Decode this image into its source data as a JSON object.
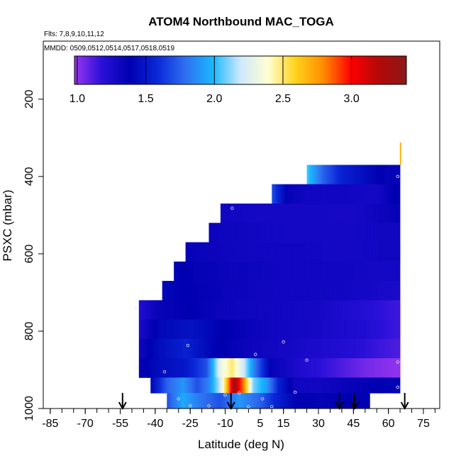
{
  "chart_data": {
    "type": "heatmap",
    "title": "ATOM4 Northbound MAC_TOGA",
    "flights_label": "Flts: 7,8,9,10,11,12",
    "dates_label": "MMDD: 0509,0512,0514,0517,0518,0519",
    "xlabel": "Latitude (deg N)",
    "ylabel": "PSXC (mbar)",
    "xlim": [
      -88,
      82
    ],
    "ylim": [
      1000,
      50
    ],
    "y_reversed": true,
    "x_ticks": [
      -85,
      -70,
      -55,
      -40,
      -25,
      -10,
      5,
      15,
      30,
      45,
      60,
      75
    ],
    "y_ticks": [
      200,
      400,
      600,
      800,
      1000
    ],
    "colorbar": {
      "range": [
        0.98,
        3.4
      ],
      "ticks": [
        1.0,
        1.5,
        2.0,
        2.5,
        3.0
      ],
      "tick_labels": [
        "1.0",
        "1.5",
        "2.0",
        "2.5",
        "3.0"
      ],
      "colors": [
        "#9a36f0",
        "#2810d8",
        "#0000b0",
        "#0a28d8",
        "#2f6ef0",
        "#1ab8ff",
        "#cfe8ff",
        "#ffffd0",
        "#ffd21a",
        "#ff8c00",
        "#ff0000",
        "#b40808",
        "#8c1818"
      ]
    },
    "bin_edges_y": [
      370,
      420,
      470,
      520,
      570,
      620,
      670,
      720,
      770,
      820,
      870,
      920,
      960,
      1000
    ],
    "rows": [
      {
        "y0": 370,
        "y1": 420,
        "x0": 25,
        "x1": 65,
        "cells": [
          [
            25,
            2.05
          ],
          [
            32,
            1.75
          ],
          [
            40,
            1.55
          ],
          [
            50,
            1.45
          ],
          [
            60,
            1.35
          ]
        ]
      },
      {
        "y0": 420,
        "y1": 470,
        "x0": 10,
        "x1": 65,
        "cells": [
          [
            10,
            1.7
          ],
          [
            17,
            1.35
          ],
          [
            25,
            1.3
          ],
          [
            40,
            1.3
          ],
          [
            55,
            1.28
          ],
          [
            64,
            1.4
          ]
        ]
      },
      {
        "y0": 470,
        "y1": 520,
        "x0": -12,
        "x1": 65,
        "cells": [
          [
            -12,
            1.3
          ],
          [
            5,
            1.28
          ],
          [
            25,
            1.28
          ],
          [
            45,
            1.27
          ],
          [
            64,
            1.35
          ]
        ]
      },
      {
        "y0": 520,
        "y1": 570,
        "x0": -17,
        "x1": 65,
        "cells": [
          [
            -17,
            1.32
          ],
          [
            0,
            1.3
          ],
          [
            20,
            1.28
          ],
          [
            40,
            1.28
          ],
          [
            60,
            1.3
          ]
        ]
      },
      {
        "y0": 570,
        "y1": 620,
        "x0": -27,
        "x1": 65,
        "cells": [
          [
            -27,
            1.35
          ],
          [
            -15,
            1.32
          ],
          [
            0,
            1.3
          ],
          [
            20,
            1.3
          ],
          [
            40,
            1.28
          ],
          [
            60,
            1.3
          ]
        ]
      },
      {
        "y0": 620,
        "y1": 670,
        "x0": -32,
        "x1": 65,
        "cells": [
          [
            -32,
            1.4
          ],
          [
            -20,
            1.35
          ],
          [
            -5,
            1.32
          ],
          [
            15,
            1.3
          ],
          [
            35,
            1.3
          ],
          [
            55,
            1.28
          ]
        ]
      },
      {
        "y0": 670,
        "y1": 720,
        "x0": -37,
        "x1": 65,
        "cells": [
          [
            -37,
            1.42
          ],
          [
            -25,
            1.38
          ],
          [
            -10,
            1.33
          ],
          [
            10,
            1.3
          ],
          [
            30,
            1.3
          ],
          [
            50,
            1.28
          ],
          [
            63,
            1.25
          ]
        ]
      },
      {
        "y0": 720,
        "y1": 770,
        "x0": -47,
        "x1": 65,
        "cells": [
          [
            -47,
            1.22
          ],
          [
            -38,
            1.35
          ],
          [
            -25,
            1.38
          ],
          [
            -10,
            1.32
          ],
          [
            10,
            1.3
          ],
          [
            30,
            1.28
          ],
          [
            50,
            1.2
          ],
          [
            63,
            1.15
          ]
        ]
      },
      {
        "y0": 770,
        "y1": 820,
        "x0": -47,
        "x1": 65,
        "cells": [
          [
            -47,
            1.25
          ],
          [
            -38,
            1.42
          ],
          [
            -25,
            1.48
          ],
          [
            -10,
            1.38
          ],
          [
            10,
            1.3
          ],
          [
            30,
            1.27
          ],
          [
            50,
            1.22
          ],
          [
            63,
            1.15
          ]
        ]
      },
      {
        "y0": 820,
        "y1": 870,
        "x0": -47,
        "x1": 65,
        "cells": [
          [
            -47,
            1.3
          ],
          [
            -38,
            1.45
          ],
          [
            -27,
            1.55
          ],
          [
            -15,
            1.4
          ],
          [
            0,
            1.32
          ],
          [
            20,
            1.27
          ],
          [
            45,
            1.2
          ],
          [
            63,
            1.12
          ]
        ]
      },
      {
        "y0": 870,
        "y1": 920,
        "x0": -47,
        "x1": 65,
        "cells": [
          [
            -47,
            1.35
          ],
          [
            -38,
            1.45
          ],
          [
            -27,
            1.5
          ],
          [
            -18,
            1.7
          ],
          [
            -12,
            2.3
          ],
          [
            -7,
            2.5
          ],
          [
            -2,
            2.2
          ],
          [
            3,
            1.8
          ],
          [
            10,
            1.35
          ],
          [
            20,
            1.25
          ],
          [
            35,
            1.15
          ],
          [
            50,
            1.05
          ],
          [
            63,
            1.0
          ]
        ]
      },
      {
        "y0": 920,
        "y1": 960,
        "x0": -42,
        "x1": 65,
        "cells": [
          [
            -42,
            1.4
          ],
          [
            -35,
            1.75
          ],
          [
            -28,
            1.9
          ],
          [
            -22,
            1.7
          ],
          [
            -17,
            1.85
          ],
          [
            -12,
            2.2
          ],
          [
            -9,
            2.7
          ],
          [
            -6,
            3.3
          ],
          [
            -4,
            3.0
          ],
          [
            -2,
            2.8
          ],
          [
            2,
            2.1
          ],
          [
            8,
            1.9
          ],
          [
            13,
            1.55
          ],
          [
            20,
            1.3
          ],
          [
            30,
            1.3
          ],
          [
            45,
            1.35
          ],
          [
            60,
            1.4
          ]
        ]
      },
      {
        "y0": 960,
        "y1": 1000,
        "x0": -35,
        "x1": 52,
        "cells": [
          [
            -35,
            1.7
          ],
          [
            -28,
            1.95
          ],
          [
            -20,
            1.8
          ],
          [
            -12,
            1.7
          ],
          [
            -4,
            1.9
          ],
          [
            5,
            1.75
          ],
          [
            12,
            1.55
          ],
          [
            20,
            1.4
          ],
          [
            30,
            1.35
          ],
          [
            40,
            1.38
          ],
          [
            50,
            1.4
          ]
        ]
      }
    ],
    "arrows_x": [
      -54,
      -7.5,
      39,
      45.5,
      67
    ],
    "points": [
      [
        -48,
        740
      ],
      [
        -48,
        895
      ],
      [
        -36,
        905
      ],
      [
        -26,
        837
      ],
      [
        -30,
        975
      ],
      [
        -25,
        993
      ],
      [
        -17,
        993
      ],
      [
        -10,
        965
      ],
      [
        -7,
        482
      ],
      [
        -4,
        960
      ],
      [
        0,
        995
      ],
      [
        3,
        860
      ],
      [
        6,
        975
      ],
      [
        10,
        995
      ],
      [
        15,
        828
      ],
      [
        20,
        958
      ],
      [
        25,
        875
      ],
      [
        64,
        400
      ],
      [
        64,
        880
      ],
      [
        64,
        945
      ]
    ]
  }
}
